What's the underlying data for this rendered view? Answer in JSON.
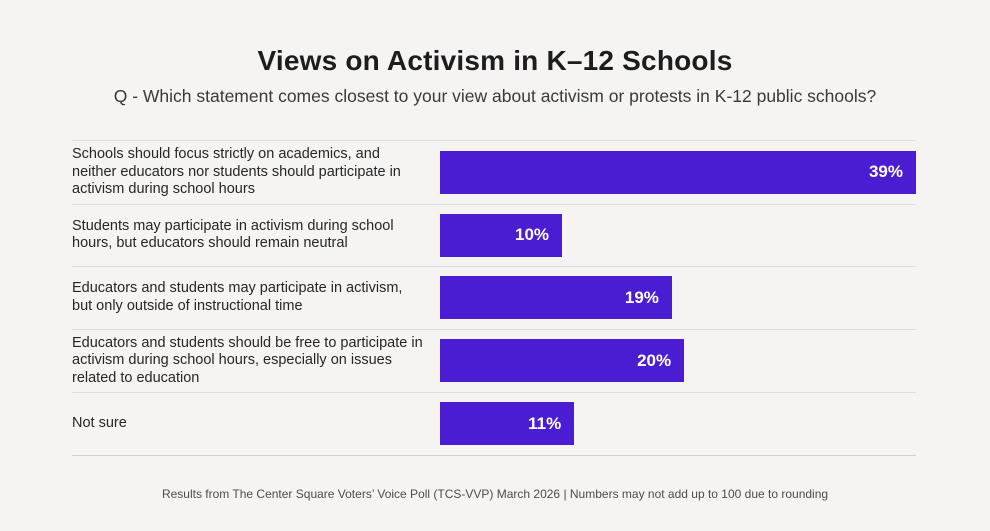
{
  "title": "Views on Activism in K–12 Schools",
  "subtitle": "Q - Which statement comes closest to your view about activism or protests in K-12 public schools?",
  "footer": "Results from The Center Square Voters’ Voice Poll (TCS-VVP) March 2026 | Numbers may not add up to 100 due to rounding",
  "colors": {
    "background": "#f5f4f2",
    "bar": "#4a1dd2",
    "bar_value_text": "#ffffff",
    "title_text": "#1d1d1d",
    "divider": "#dedddb"
  },
  "chart_data": {
    "type": "bar",
    "orientation": "horizontal",
    "title": "Views on Activism in K–12 Schools",
    "subtitle": "Q - Which statement comes closest to your view about activism or protests in K-12 public schools?",
    "categories": [
      "Schools should focus strictly on academics, and neither educators nor students should participate in activism during school hours",
      "Students may participate in activism during school hours, but educators should remain neutral",
      "Educators and students may participate in activism, but only outside of instructional time",
      "Educators and students should be free to participate in activism during school hours, especially on issues related to education",
      "Not sure"
    ],
    "values": [
      39,
      10,
      19,
      20,
      11
    ],
    "value_labels": [
      "39%",
      "10%",
      "19%",
      "20%",
      "11%"
    ],
    "unit": "percent",
    "xlim": [
      0,
      39
    ],
    "grid": false,
    "legend": "none",
    "value_label_position": "inside-end",
    "source_note": "Results from The Center Square Voters’ Voice Poll (TCS-VVP) March 2026 | Numbers may not add up to 100 due to rounding"
  }
}
